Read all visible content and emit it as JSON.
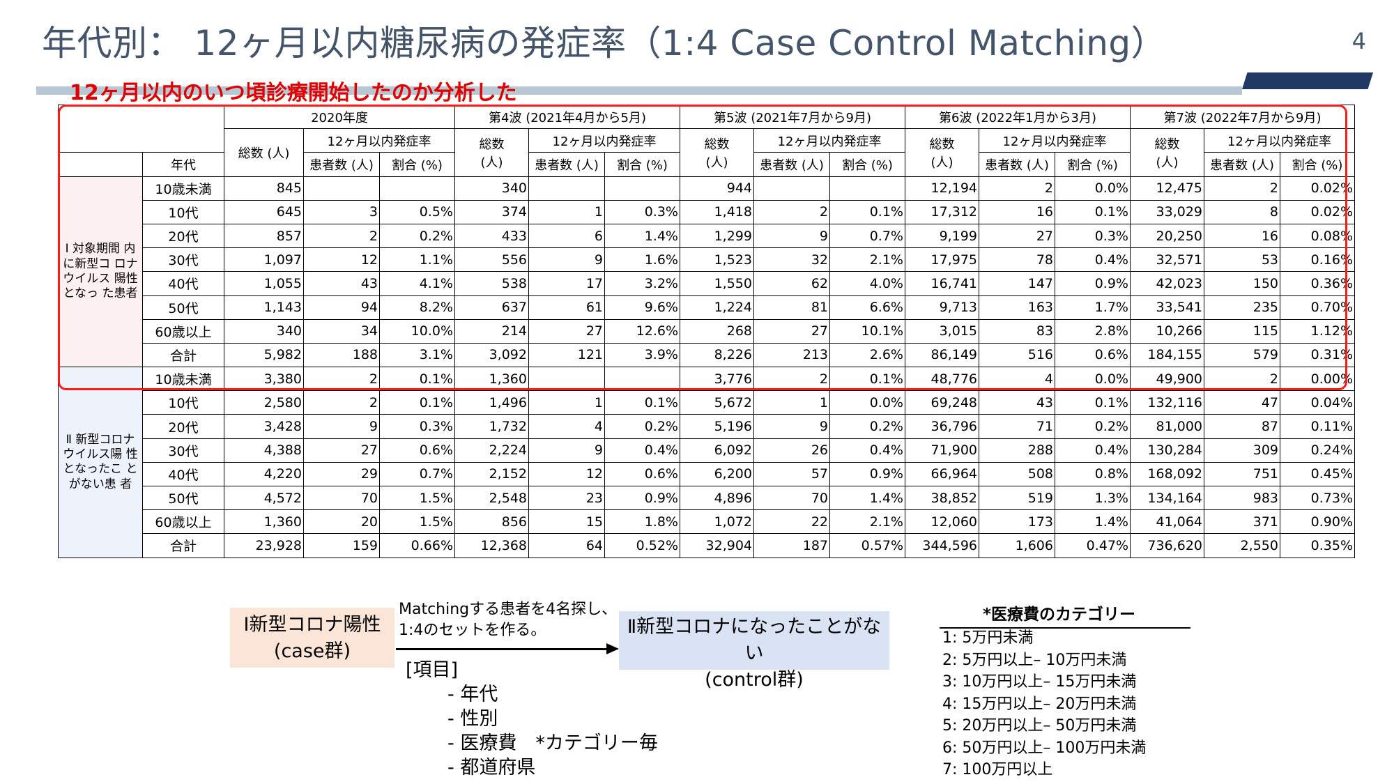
{
  "title": "年代別： 12ヶ月以内糖尿病の発症率（1:4 Case Control Matching）",
  "page_number": "4",
  "subtitle": "12ヶ月以内のいつ頃診療開始したのか分析した",
  "table": {
    "header": {
      "periods": [
        "2020年度",
        "第4波 (2021年4月から5月)",
        "第5波 (2021年7月から9月)",
        "第6波 (2022年1月から3月)",
        "第7波 (2022年7月から9月)"
      ],
      "total_label": "総数 (人)",
      "total_label_wave": "総数\n(人)",
      "incidence_label": "12ヶ月以内発症率",
      "age_label": "年代",
      "patients_label": "患者数 (人)",
      "ratio_label": "割合 (%)"
    },
    "groups": [
      {
        "label": "Ⅰ\n対象期間\n内に新型コ\nロナウイルス\n陽性となっ\nた患者",
        "rows": [
          [
            "10歳未満",
            "845",
            "",
            "",
            "340",
            "",
            "",
            "944",
            "",
            "",
            "12,194",
            "2",
            "0.0%",
            "12,475",
            "2",
            "0.02%"
          ],
          [
            "10代",
            "645",
            "3",
            "0.5%",
            "374",
            "1",
            "0.3%",
            "1,418",
            "2",
            "0.1%",
            "17,312",
            "16",
            "0.1%",
            "33,029",
            "8",
            "0.02%"
          ],
          [
            "20代",
            "857",
            "2",
            "0.2%",
            "433",
            "6",
            "1.4%",
            "1,299",
            "9",
            "0.7%",
            "9,199",
            "27",
            "0.3%",
            "20,250",
            "16",
            "0.08%"
          ],
          [
            "30代",
            "1,097",
            "12",
            "1.1%",
            "556",
            "9",
            "1.6%",
            "1,523",
            "32",
            "2.1%",
            "17,975",
            "78",
            "0.4%",
            "32,571",
            "53",
            "0.16%"
          ],
          [
            "40代",
            "1,055",
            "43",
            "4.1%",
            "538",
            "17",
            "3.2%",
            "1,550",
            "62",
            "4.0%",
            "16,741",
            "147",
            "0.9%",
            "42,023",
            "150",
            "0.36%"
          ],
          [
            "50代",
            "1,143",
            "94",
            "8.2%",
            "637",
            "61",
            "9.6%",
            "1,224",
            "81",
            "6.6%",
            "9,713",
            "163",
            "1.7%",
            "33,541",
            "235",
            "0.70%"
          ],
          [
            "60歳以上",
            "340",
            "34",
            "10.0%",
            "214",
            "27",
            "12.6%",
            "268",
            "27",
            "10.1%",
            "3,015",
            "83",
            "2.8%",
            "10,266",
            "115",
            "1.12%"
          ],
          [
            "合計",
            "5,982",
            "188",
            "3.1%",
            "3,092",
            "121",
            "3.9%",
            "8,226",
            "213",
            "2.6%",
            "86,149",
            "516",
            "0.6%",
            "184,155",
            "579",
            "0.31%"
          ]
        ]
      },
      {
        "label": "Ⅱ\n新型コロナ\nウイルス陽\n性となったこ\nとがない患\n者",
        "rows": [
          [
            "10歳未満",
            "3,380",
            "2",
            "0.1%",
            "1,360",
            "",
            "",
            "3,776",
            "2",
            "0.1%",
            "48,776",
            "4",
            "0.0%",
            "49,900",
            "2",
            "0.00%"
          ],
          [
            "10代",
            "2,580",
            "2",
            "0.1%",
            "1,496",
            "1",
            "0.1%",
            "5,672",
            "1",
            "0.0%",
            "69,248",
            "43",
            "0.1%",
            "132,116",
            "47",
            "0.04%"
          ],
          [
            "20代",
            "3,428",
            "9",
            "0.3%",
            "1,732",
            "4",
            "0.2%",
            "5,196",
            "9",
            "0.2%",
            "36,796",
            "71",
            "0.2%",
            "81,000",
            "87",
            "0.11%"
          ],
          [
            "30代",
            "4,388",
            "27",
            "0.6%",
            "2,224",
            "9",
            "0.4%",
            "6,092",
            "26",
            "0.4%",
            "71,900",
            "288",
            "0.4%",
            "130,284",
            "309",
            "0.24%"
          ],
          [
            "40代",
            "4,220",
            "29",
            "0.7%",
            "2,152",
            "12",
            "0.6%",
            "6,200",
            "57",
            "0.9%",
            "66,964",
            "508",
            "0.8%",
            "168,092",
            "751",
            "0.45%"
          ],
          [
            "50代",
            "4,572",
            "70",
            "1.5%",
            "2,548",
            "23",
            "0.9%",
            "4,896",
            "70",
            "1.4%",
            "38,852",
            "519",
            "1.3%",
            "134,164",
            "983",
            "0.73%"
          ],
          [
            "60歳以上",
            "1,360",
            "20",
            "1.5%",
            "856",
            "15",
            "1.8%",
            "1,072",
            "22",
            "2.1%",
            "12,060",
            "173",
            "1.4%",
            "41,064",
            "371",
            "0.90%"
          ],
          [
            "合計",
            "23,928",
            "159",
            "0.66%",
            "12,368",
            "64",
            "0.52%",
            "32,904",
            "187",
            "0.57%",
            "344,596",
            "1,606",
            "0.47%",
            "736,620",
            "2,550",
            "0.35%"
          ]
        ]
      }
    ]
  },
  "diagram": {
    "case_box": "Ⅰ新型コロナ陽性\n(case群)",
    "control_box": "Ⅱ新型コロナになったことがない\n(control群)",
    "matching_text": "Matchingする患者を4名探し、\n1:4のセットを作る。",
    "items_title": "[項目]",
    "items": [
      "- 年代",
      "- 性別",
      "- 医療費　*カテゴリー毎",
      "- 都道府県"
    ]
  },
  "categories": {
    "title": "*医療費のカテゴリー",
    "items": [
      "1:  5万円未満",
      "2:  5万円以上– 10万円未満",
      "3: 10万円以上– 15万円未満",
      "4: 15万円以上– 20万円未満",
      "5: 20万円以上– 50万円未満",
      "6: 50万円以上– 100万円未満",
      "7: 100万円以上"
    ]
  },
  "colors": {
    "title": "#44546a",
    "subtitle": "#e00000",
    "highlight_border": "#ff1a1a",
    "case_box": "#fbe5d6",
    "control_box": "#dae3f3",
    "accent_bar": "#1f3864"
  }
}
